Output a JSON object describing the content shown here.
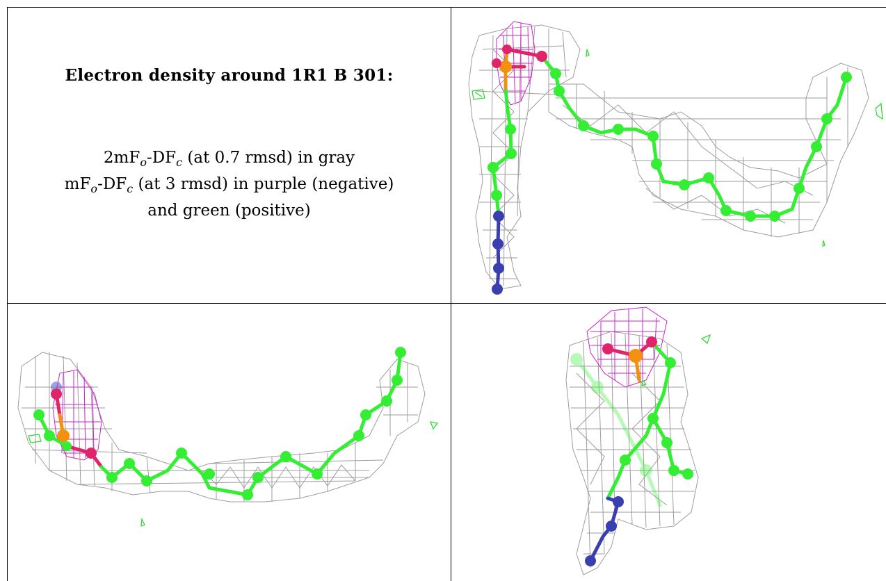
{
  "caption": {
    "title": "Electron density around 1R1 B 301:",
    "line1_main": "2mF",
    "line1_sub1": "o",
    "line1_mid": "-DF",
    "line1_sub2": "c",
    "line1_tail": " (at 0.7 rmsd) in gray",
    "line2_main": "mF",
    "line2_sub1": "o",
    "line2_mid": "-DF",
    "line2_sub2": "c",
    "line2_tail": " (at 3 rmsd) in purple (negative)",
    "line3": "and green (positive)"
  },
  "colors": {
    "carbon": "#33ee33",
    "nitrogen": "#3a3fb0",
    "oxygen": "#e0246a",
    "phosphorus": "#f29010",
    "mesh_2fofc": "#8c8c8c",
    "mesh_fofc_negative": "#cc22cc",
    "mesh_fofc_positive": "#22dd22"
  },
  "panels": [
    {
      "name": "view-top-right",
      "content": "electron density map with ligand model"
    },
    {
      "name": "view-bottom-left",
      "content": "electron density map with ligand model"
    },
    {
      "name": "view-bottom-right",
      "content": "electron density map with ligand model"
    }
  ]
}
